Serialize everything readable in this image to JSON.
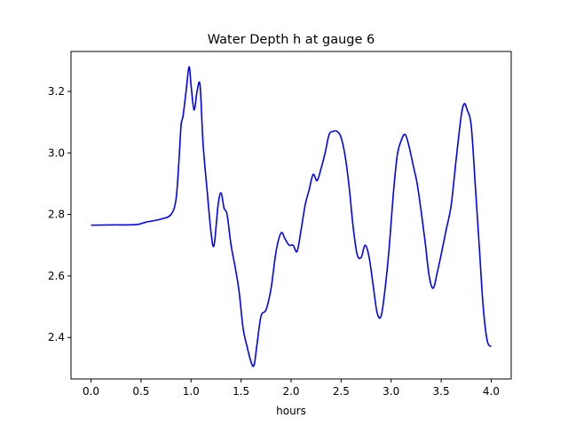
{
  "chart_data": {
    "type": "line",
    "title": "Water Depth h at gauge 6",
    "xlabel": "hours",
    "ylabel": "",
    "xlim": [
      -0.2,
      4.2
    ],
    "ylim": [
      2.265,
      3.33
    ],
    "xticks": [
      0.0,
      0.5,
      1.0,
      1.5,
      2.0,
      2.5,
      3.0,
      3.5,
      4.0
    ],
    "xtick_labels": [
      "0.0",
      "0.5",
      "1.0",
      "1.5",
      "2.0",
      "2.5",
      "3.0",
      "3.5",
      "4.0"
    ],
    "yticks": [
      2.4,
      2.6,
      2.8,
      3.0,
      3.2
    ],
    "ytick_labels": [
      "2.4",
      "2.6",
      "2.8",
      "3.0",
      "3.2"
    ],
    "grid": false,
    "series": [
      {
        "color": "#0000ff",
        "x": [
          0.0,
          0.2,
          0.45,
          0.55,
          0.7,
          0.8,
          0.85,
          0.88,
          0.9,
          0.92,
          0.95,
          0.98,
          1.0,
          1.03,
          1.06,
          1.09,
          1.12,
          1.16,
          1.2,
          1.23,
          1.27,
          1.3,
          1.33,
          1.36,
          1.4,
          1.44,
          1.48,
          1.52,
          1.56,
          1.6,
          1.63,
          1.66,
          1.7,
          1.75,
          1.8,
          1.85,
          1.9,
          1.94,
          1.98,
          2.02,
          2.06,
          2.1,
          2.14,
          2.18,
          2.22,
          2.26,
          2.3,
          2.34,
          2.38,
          2.42,
          2.46,
          2.5,
          2.54,
          2.58,
          2.62,
          2.66,
          2.7,
          2.74,
          2.78,
          2.82,
          2.86,
          2.9,
          2.94,
          2.98,
          3.02,
          3.06,
          3.1,
          3.14,
          3.18,
          3.22,
          3.26,
          3.3,
          3.34,
          3.38,
          3.42,
          3.46,
          3.5,
          3.55,
          3.6,
          3.65,
          3.7,
          3.73,
          3.76,
          3.8,
          3.84,
          3.88,
          3.92,
          3.96,
          4.0
        ],
        "y": [
          2.765,
          2.766,
          2.767,
          2.775,
          2.785,
          2.8,
          2.85,
          2.98,
          3.09,
          3.12,
          3.2,
          3.28,
          3.22,
          3.14,
          3.2,
          3.22,
          3.03,
          2.88,
          2.74,
          2.7,
          2.83,
          2.87,
          2.82,
          2.8,
          2.7,
          2.63,
          2.55,
          2.43,
          2.37,
          2.32,
          2.31,
          2.38,
          2.47,
          2.49,
          2.56,
          2.68,
          2.74,
          2.72,
          2.7,
          2.7,
          2.68,
          2.75,
          2.83,
          2.88,
          2.93,
          2.91,
          2.95,
          3.0,
          3.06,
          3.07,
          3.07,
          3.05,
          2.99,
          2.89,
          2.76,
          2.67,
          2.66,
          2.7,
          2.66,
          2.57,
          2.48,
          2.47,
          2.56,
          2.69,
          2.86,
          2.99,
          3.04,
          3.06,
          3.02,
          2.96,
          2.9,
          2.81,
          2.71,
          2.6,
          2.56,
          2.61,
          2.67,
          2.75,
          2.83,
          2.98,
          3.12,
          3.16,
          3.14,
          3.09,
          2.9,
          2.7,
          2.5,
          2.39,
          2.37
        ]
      }
    ]
  }
}
